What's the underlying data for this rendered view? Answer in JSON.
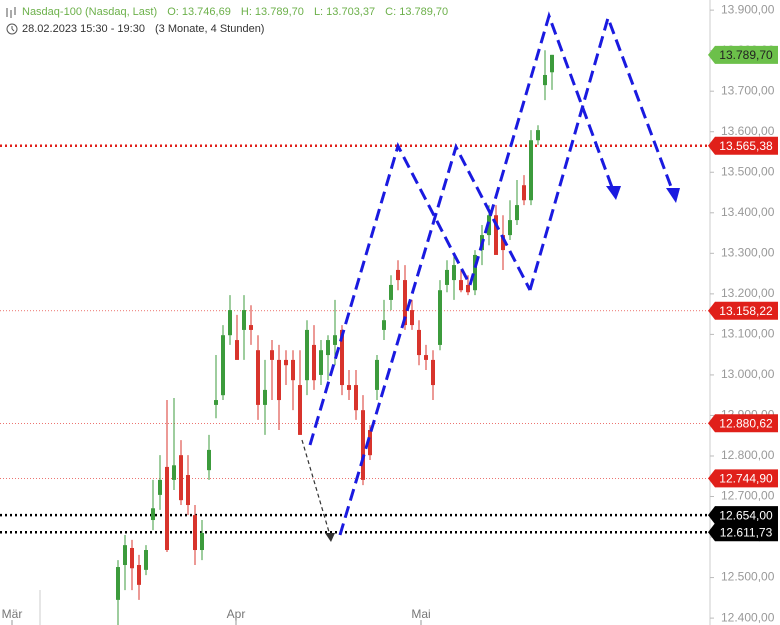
{
  "chart_data": {
    "type": "candlestick",
    "title": "Nasdaq-100 (Nasdaq, Last)",
    "ohlc_labels": [
      "O: 13.746,69",
      "H: 13.789,70",
      "L: 13.703,37",
      "C: 13.789,70"
    ],
    "subtitle": "28.02.2023 15:30 - 19:30",
    "period": "(3 Monate, 4 Stunden)",
    "x_labels": [
      "Mär",
      "Apr",
      "Mai"
    ],
    "up_color": "#3c9b3c",
    "down_color": "#d8342c",
    "open": [
      12445,
      12531,
      12573,
      12531,
      12519,
      12642,
      12704,
      12773,
      12741,
      12802,
      12753,
      12654,
      12568,
      12765,
      12926,
      12950,
      13098,
      13086,
      13111,
      13123,
      13061,
      12926,
      13061,
      13037,
      13037,
      13037,
      12975,
      12987,
      13074,
      13000,
      13049,
      13074,
      13111,
      12975,
      12975,
      12913,
      12864,
      12963,
      13111,
      13185,
      13259,
      13234,
      13160,
      13111,
      13049,
      13037,
      13074,
      13222,
      13234,
      13234,
      13222,
      13209,
      13308,
      13345,
      13394,
      13345,
      13345,
      13382,
      13468,
      13431,
      13579,
      13715,
      13746.69
    ],
    "high": [
      12543,
      12605,
      12593,
      12556,
      12580,
      12741,
      12802,
      12938,
      12943,
      12839,
      12802,
      12679,
      12642,
      12852,
      13049,
      13123,
      13197,
      13148,
      13197,
      13172,
      13098,
      13037,
      13086,
      13074,
      13061,
      13061,
      13061,
      13135,
      13123,
      13086,
      13098,
      13185,
      13123,
      13012,
      13012,
      12950,
      12876,
      13049,
      13185,
      13246,
      13283,
      13271,
      13185,
      13135,
      13074,
      13061,
      13234,
      13283,
      13296,
      13259,
      13246,
      13308,
      13370,
      13419,
      13419,
      13394,
      13431,
      13481,
      13493,
      13604,
      13616,
      13801,
      13789.7
    ],
    "low": [
      12383,
      12469,
      12469,
      12445,
      12506,
      12617,
      12667,
      12563,
      12716,
      12679,
      12654,
      12531,
      12543,
      12741,
      12893,
      12938,
      13074,
      13037,
      13037,
      13074,
      12889,
      12852,
      12938,
      12864,
      12975,
      12913,
      12852,
      12950,
      12963,
      12975,
      12987,
      13024,
      12950,
      12938,
      12889,
      12728,
      12790,
      12938,
      13086,
      13160,
      13209,
      13111,
      13111,
      13024,
      13012,
      12938,
      13061,
      13204,
      13185,
      13204,
      13197,
      13197,
      13271,
      13320,
      13308,
      13259,
      13333,
      13370,
      13419,
      13419,
      13567,
      13678,
      13703.37
    ],
    "close": [
      12526,
      12580,
      12523,
      12482,
      12568,
      12671,
      12741,
      12568,
      12777,
      12691,
      12679,
      12568,
      12610,
      12815,
      12938,
      13098,
      13160,
      13037,
      13160,
      13111,
      12926,
      12963,
      13037,
      12938,
      13024,
      12987,
      12852,
      13111,
      12987,
      13061,
      13086,
      13098,
      12975,
      12963,
      12913,
      12741,
      12802,
      13037,
      13135,
      13222,
      13234,
      13123,
      13123,
      13049,
      13037,
      12975,
      13209,
      13259,
      13271,
      13209,
      13204,
      13296,
      13345,
      13394,
      13296,
      13308,
      13382,
      13419,
      13431,
      13579,
      13604,
      13740,
      13789.7
    ],
    "ylim": [
      12383,
      13925
    ],
    "yticks": [
      {
        "value": 12400,
        "label": "12.400,00"
      },
      {
        "value": 12500,
        "label": "12.500,00"
      },
      {
        "value": 12600,
        "label": "12.600,00"
      },
      {
        "value": 12700,
        "label": "12.700,00"
      },
      {
        "value": 12800,
        "label": "12.800,00"
      },
      {
        "value": 12900,
        "label": "12.900,00"
      },
      {
        "value": 13000,
        "label": "13.000,00"
      },
      {
        "value": 13100,
        "label": "13.100,00"
      },
      {
        "value": 13200,
        "label": "13.200,00"
      },
      {
        "value": 13300,
        "label": "13.300,00"
      },
      {
        "value": 13400,
        "label": "13.400,00"
      },
      {
        "value": 13500,
        "label": "13.500,00"
      },
      {
        "value": 13600,
        "label": "13.600,00"
      },
      {
        "value": 13700,
        "label": "13.700,00"
      },
      {
        "value": 13800,
        "label": "13.800,00"
      },
      {
        "value": 13900,
        "label": "13.900,00"
      }
    ],
    "levels": [
      {
        "value": 13789.7,
        "label": "13.789,70",
        "color": "#6cc04a",
        "line": false
      },
      {
        "value": 13565.38,
        "label": "13.565,38",
        "color": "#e0201a",
        "line": true,
        "width": 2.5
      },
      {
        "value": 13158.22,
        "label": "13.158,22",
        "color": "#e0201a",
        "line": true,
        "width": 0.7
      },
      {
        "value": 12880.62,
        "label": "12.880,62",
        "color": "#e0201a",
        "line": true,
        "width": 0.7
      },
      {
        "value": 12744.9,
        "label": "12.744,90",
        "color": "#e0201a",
        "line": true,
        "width": 0.7
      },
      {
        "value": 12654.0,
        "label": "12.654,00",
        "color": "#000000",
        "line": true,
        "width": 2.5
      },
      {
        "value": 12611.73,
        "label": "12.611,73",
        "color": "#000000",
        "line": true,
        "width": 2.5
      }
    ]
  }
}
